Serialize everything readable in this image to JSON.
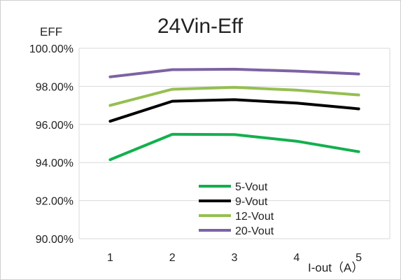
{
  "chart_data": {
    "type": "line",
    "title": "24Vin-Eff",
    "ylabel": "EFF",
    "xlabel": "I-out（A）",
    "categories": [
      "1",
      "2",
      "3",
      "4",
      "5"
    ],
    "ylim": [
      0.9,
      1.0
    ],
    "ytick_values": [
      0.9,
      0.92,
      0.94,
      0.96,
      0.98,
      1.0
    ],
    "ytick_labels": [
      "90.00%",
      "92.00%",
      "94.00%",
      "96.00%",
      "98.00%",
      "100.00%"
    ],
    "grid": true,
    "legend_position": "lower-center",
    "series": [
      {
        "name": "5-Vout",
        "color": "#13b04e",
        "values": [
          0.9415,
          0.9548,
          0.9547,
          0.9512,
          0.9457
        ]
      },
      {
        "name": "9-Vout",
        "color": "#000000",
        "values": [
          0.9617,
          0.9722,
          0.973,
          0.9712,
          0.9682
        ]
      },
      {
        "name": "12-Vout",
        "color": "#95bf50",
        "values": [
          0.97,
          0.9785,
          0.9795,
          0.978,
          0.9755
        ]
      },
      {
        "name": "20-Vout",
        "color": "#7d62a3",
        "values": [
          0.985,
          0.9888,
          0.989,
          0.988,
          0.9865
        ]
      }
    ]
  }
}
